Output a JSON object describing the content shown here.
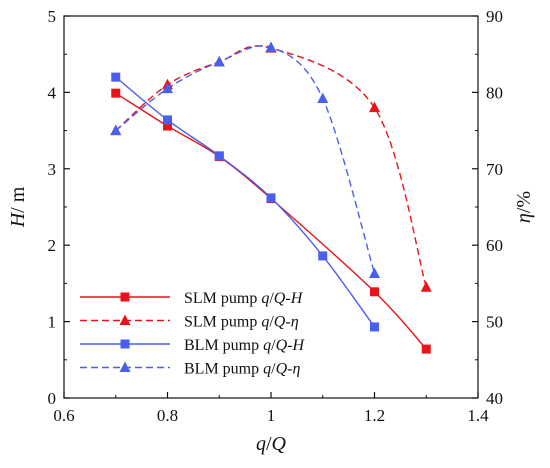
{
  "chart_data": {
    "type": "line",
    "xlabel": {
      "italic": "q",
      "rest": "/",
      "italic2": "Q"
    },
    "ylabel_left": {
      "italic": "H",
      "rest": "/ m"
    },
    "ylabel_right": {
      "italic": "η",
      "rest": "/%"
    },
    "x_ticks": [
      "0.6",
      "0.8",
      "1",
      "1.2",
      "1.4"
    ],
    "y_left_ticks": [
      "0",
      "1",
      "2",
      "3",
      "4",
      "5"
    ],
    "y_right_ticks": [
      "40",
      "50",
      "60",
      "70",
      "80",
      "90"
    ],
    "xlim": [
      0.6,
      1.4
    ],
    "ylim_left": [
      0,
      5
    ],
    "ylim_right": [
      40,
      90
    ],
    "grid": false,
    "legend_position": "bottom-left",
    "series": [
      {
        "name": "SLM pump q/Q-H",
        "legend": {
          "prefix": "SLM pump ",
          "italic": "q",
          "mid": "/",
          "italic2": "Q",
          "suffix": "-",
          "italic3": "H"
        },
        "axis": "left",
        "color": "#e8141a",
        "dashed": false,
        "marker": "square",
        "x": [
          0.7,
          0.8,
          0.9,
          1.0,
          1.2,
          1.3
        ],
        "y": [
          3.99,
          3.56,
          3.16,
          2.61,
          1.39,
          0.64
        ]
      },
      {
        "name": "SLM pump q/Q-η",
        "legend": {
          "prefix": "SLM pump ",
          "italic": "q",
          "mid": "/",
          "italic2": "Q",
          "suffix": "-",
          "italic3": "η"
        },
        "axis": "right",
        "color": "#e8141a",
        "dashed": true,
        "marker": "triangle",
        "x": [
          0.7,
          0.8,
          0.9,
          1.0,
          1.2,
          1.3
        ],
        "y": [
          75.0,
          81.0,
          84.0,
          85.8,
          78.0,
          54.5
        ]
      },
      {
        "name": "BLM pump q/Q-H",
        "legend": {
          "prefix": "BLM pump ",
          "italic": "q",
          "mid": "/",
          "italic2": "Q",
          "suffix": "-",
          "italic3": "H"
        },
        "axis": "left",
        "color": "#4a5ef0",
        "dashed": false,
        "marker": "square",
        "x": [
          0.7,
          0.8,
          0.9,
          1.0,
          1.1,
          1.2
        ],
        "y": [
          4.2,
          3.64,
          3.17,
          2.62,
          1.86,
          0.93
        ]
      },
      {
        "name": "BLM pump q/Q-η",
        "legend": {
          "prefix": "BLM pump ",
          "italic": "q",
          "mid": "/",
          "italic2": "Q",
          "suffix": "-",
          "italic3": "η"
        },
        "axis": "right",
        "color": "#4a5ef0",
        "dashed": true,
        "marker": "triangle",
        "x": [
          0.7,
          0.8,
          0.9,
          1.0,
          1.1,
          1.2
        ],
        "y": [
          75.0,
          80.5,
          84.0,
          85.9,
          79.2,
          56.3
        ]
      }
    ]
  }
}
